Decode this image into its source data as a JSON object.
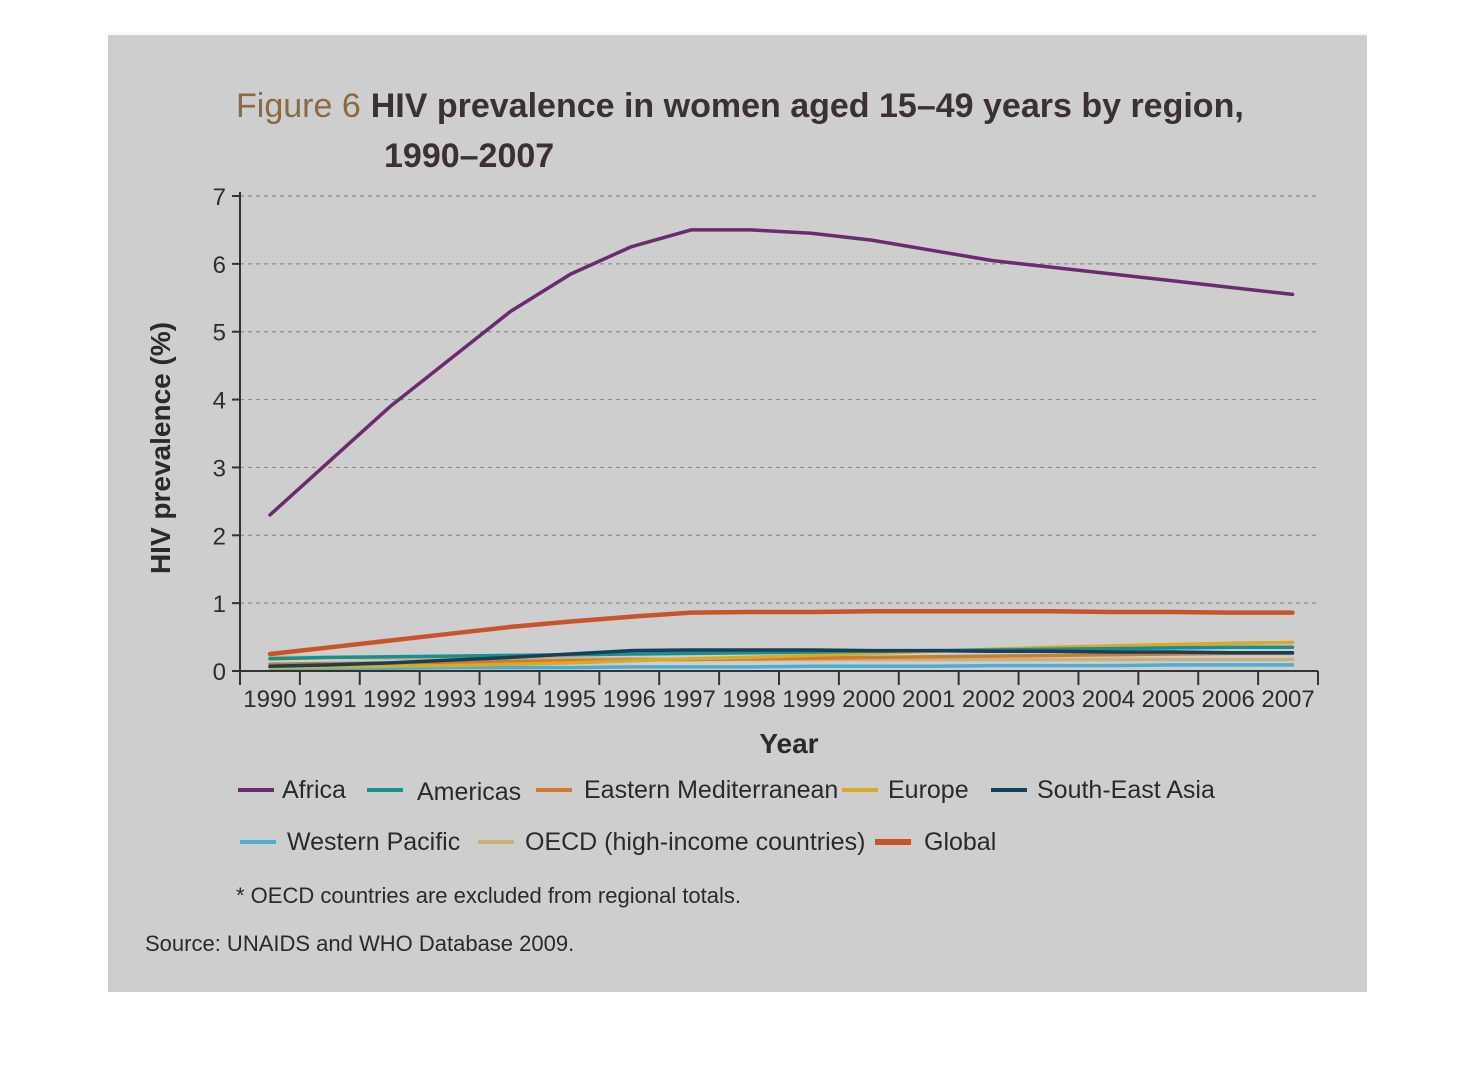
{
  "figure": {
    "prefix": "Figure 6",
    "title_line1": "HIV prevalence in women aged 15–49 years by region,",
    "title_line2": "1990–2007"
  },
  "chart_data": {
    "type": "line",
    "xlabel": "Year",
    "ylabel": "HIV prevalence (%)",
    "ylim": [
      0,
      7
    ],
    "yticks": [
      "0",
      "1",
      "2",
      "3",
      "4",
      "5",
      "6",
      "7"
    ],
    "grid": "horizontal dashed",
    "legend_position": "bottom",
    "x": [
      "1990",
      "1991",
      "1992",
      "1993",
      "1994",
      "1995",
      "1996",
      "1997",
      "1998",
      "1999",
      "2000",
      "2001",
      "2002",
      "2003",
      "2004",
      "2005",
      "2006",
      "2007"
    ],
    "series": [
      {
        "name": "Africa",
        "color": "#6a2c6e",
        "values": [
          2.3,
          3.1,
          3.9,
          4.6,
          5.3,
          5.85,
          6.25,
          6.5,
          6.5,
          6.45,
          6.35,
          6.2,
          6.05,
          5.95,
          5.85,
          5.75,
          5.65,
          5.55
        ]
      },
      {
        "name": "Americas",
        "color": "#1a8f8f",
        "values": [
          0.18,
          0.2,
          0.21,
          0.22,
          0.23,
          0.24,
          0.25,
          0.26,
          0.27,
          0.28,
          0.29,
          0.3,
          0.31,
          0.32,
          0.33,
          0.34,
          0.35,
          0.35
        ]
      },
      {
        "name": "Eastern Mediterranean",
        "color": "#d07a30",
        "values": [
          0.1,
          0.11,
          0.12,
          0.13,
          0.14,
          0.15,
          0.16,
          0.17,
          0.18,
          0.19,
          0.2,
          0.21,
          0.22,
          0.23,
          0.24,
          0.25,
          0.26,
          0.26
        ]
      },
      {
        "name": "Europe",
        "color": "#d9a928",
        "values": [
          0.05,
          0.06,
          0.07,
          0.08,
          0.1,
          0.12,
          0.15,
          0.18,
          0.2,
          0.23,
          0.26,
          0.29,
          0.32,
          0.35,
          0.37,
          0.39,
          0.41,
          0.42
        ]
      },
      {
        "name": "South-East Asia",
        "color": "#15405c",
        "values": [
          0.07,
          0.09,
          0.12,
          0.16,
          0.2,
          0.25,
          0.3,
          0.31,
          0.31,
          0.31,
          0.3,
          0.3,
          0.29,
          0.29,
          0.28,
          0.28,
          0.27,
          0.27
        ]
      },
      {
        "name": "Western Pacific",
        "color": "#4aaed6",
        "values": [
          0.04,
          0.04,
          0.04,
          0.05,
          0.05,
          0.05,
          0.06,
          0.06,
          0.06,
          0.07,
          0.07,
          0.07,
          0.08,
          0.08,
          0.08,
          0.09,
          0.09,
          0.09
        ]
      },
      {
        "name": "OECD (high-income countries)",
        "color": "#c9b27a",
        "values": [
          0.2,
          0.2,
          0.19,
          0.19,
          0.18,
          0.18,
          0.18,
          0.17,
          0.17,
          0.17,
          0.17,
          0.17,
          0.17,
          0.17,
          0.17,
          0.17,
          0.17,
          0.17
        ]
      },
      {
        "name": "Global",
        "color": "#c8552a",
        "values": [
          0.25,
          0.35,
          0.45,
          0.55,
          0.65,
          0.73,
          0.8,
          0.86,
          0.87,
          0.87,
          0.88,
          0.88,
          0.88,
          0.88,
          0.87,
          0.87,
          0.86,
          0.86
        ]
      }
    ]
  },
  "footnote": "* OECD countries are excluded from regional totals.",
  "source": "Source: UNAIDS and WHO Database 2009."
}
